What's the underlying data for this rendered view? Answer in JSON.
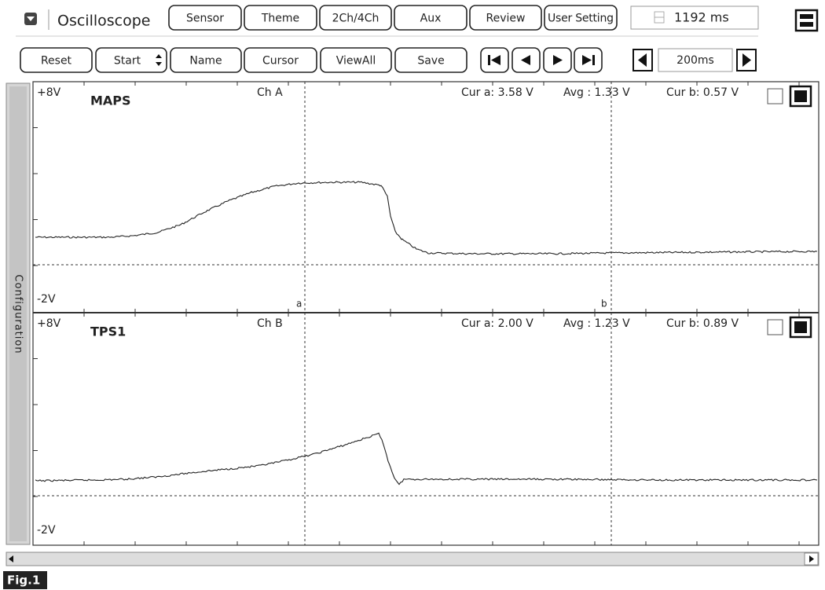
{
  "toolbar": {
    "title": "Oscilloscope",
    "buttons": [
      "Sensor",
      "Theme",
      "2Ch/4Ch",
      "Aux",
      "Review",
      "User Setting"
    ],
    "time_display": "1192 ms"
  },
  "controls": {
    "buttons": [
      "Reset",
      "Start",
      "Name",
      "Cursor",
      "ViewAll",
      "Save"
    ],
    "timebase": "200ms"
  },
  "side_panel": "Configuration",
  "channels": [
    {
      "top_label": "+8V",
      "bottom_label": "-2V",
      "name": "MAPS",
      "channel": "Ch A",
      "cur_a": "Cur a: 3.58 V",
      "avg": "Avg : 1.33 V",
      "cur_b": "Cur b: 0.57 V"
    },
    {
      "top_label": "+8V",
      "bottom_label": "-2V",
      "name": "TPS1",
      "channel": "Ch B",
      "cur_a": "Cur a: 2.00 V",
      "avg": "Avg : 1.23 V",
      "cur_b": "Cur b: 0.89 V"
    }
  ],
  "cursors": [
    "a",
    "b"
  ],
  "figure_label": "Fig.1"
}
